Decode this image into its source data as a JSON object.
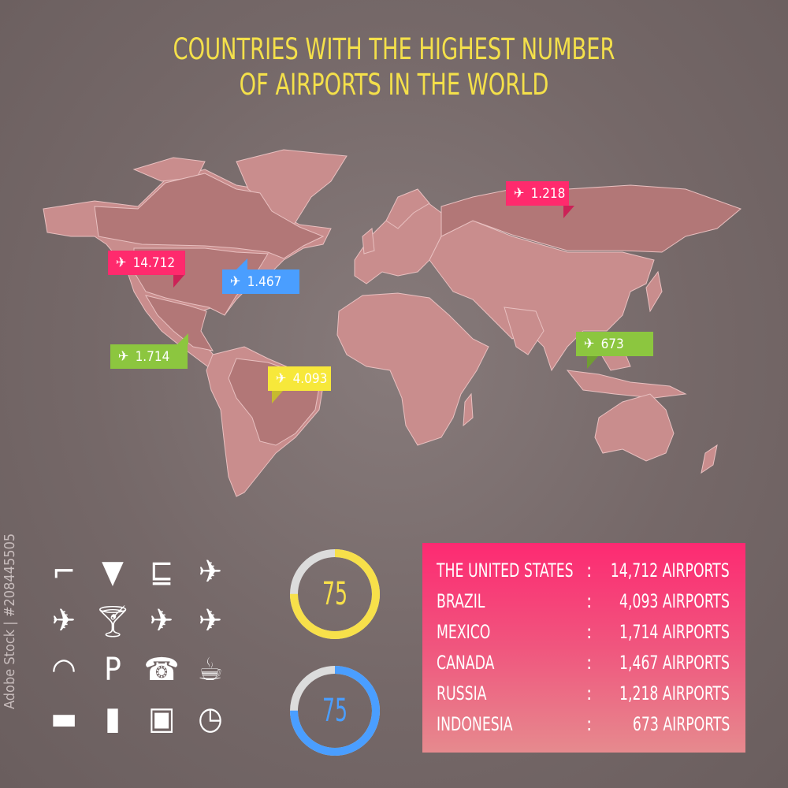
{
  "title_line1": "COUNTRIES WITH THE HIGHEST NUMBER",
  "title_line2": "OF AIRPORTS IN THE WORLD",
  "colors": {
    "background": "#756868",
    "land": "#c98d8d",
    "highlight": "#b27777",
    "title": "#f4e04a",
    "pink": "#ff2a6d",
    "blue": "#4a9eff",
    "green": "#8cc63f",
    "yellow": "#f7e83a"
  },
  "map_tags": [
    {
      "country": "United States",
      "value": "14.712",
      "color": "#ff2a6d",
      "icon": "airplane-icon"
    },
    {
      "country": "Canada",
      "value": "1.467",
      "color": "#4a9eff",
      "icon": "airplane-icon"
    },
    {
      "country": "Mexico",
      "value": "1.714",
      "color": "#8cc63f",
      "icon": "airplane-icon"
    },
    {
      "country": "Brazil",
      "value": "4.093",
      "color": "#f7e83a",
      "icon": "airplane-icon"
    },
    {
      "country": "Russia",
      "value": "1.218",
      "color": "#ff2a6d",
      "icon": "airplane-icon"
    },
    {
      "country": "Indonesia",
      "value": "673",
      "color": "#8cc63f",
      "icon": "airplane-icon"
    }
  ],
  "icons": [
    "stairs-icon",
    "umbrella-icon",
    "luggage-trolley-icon",
    "airplane-icon",
    "airplane-side-icon",
    "cocktail-icon",
    "departure-icon",
    "arrival-icon",
    "wifi-icon",
    "parking-icon",
    "phone-icon",
    "coffee-icon",
    "smoking-icon",
    "suitcase-icon",
    "baggage-claim-icon",
    "clock-icon"
  ],
  "donuts": [
    {
      "value": "75",
      "percent": 75,
      "color": "#f7e04a"
    },
    {
      "value": "75",
      "percent": 75,
      "color": "#4a9eff"
    }
  ],
  "table": {
    "separator": ":",
    "rows": [
      {
        "country": "THE UNITED STATES",
        "count": "14,712 AIRPORTS"
      },
      {
        "country": "BRAZIL",
        "count": "4,093 AIRPORTS"
      },
      {
        "country": "MEXICO",
        "count": "1,714 AIRPORTS"
      },
      {
        "country": "CANADA",
        "count": "1,467 AIRPORTS"
      },
      {
        "country": "RUSSIA",
        "count": "1,218 AIRPORTS"
      },
      {
        "country": "INDONESIA",
        "count": "673 AIRPORTS"
      }
    ]
  },
  "credit": "Adobe Stock | #208445505"
}
